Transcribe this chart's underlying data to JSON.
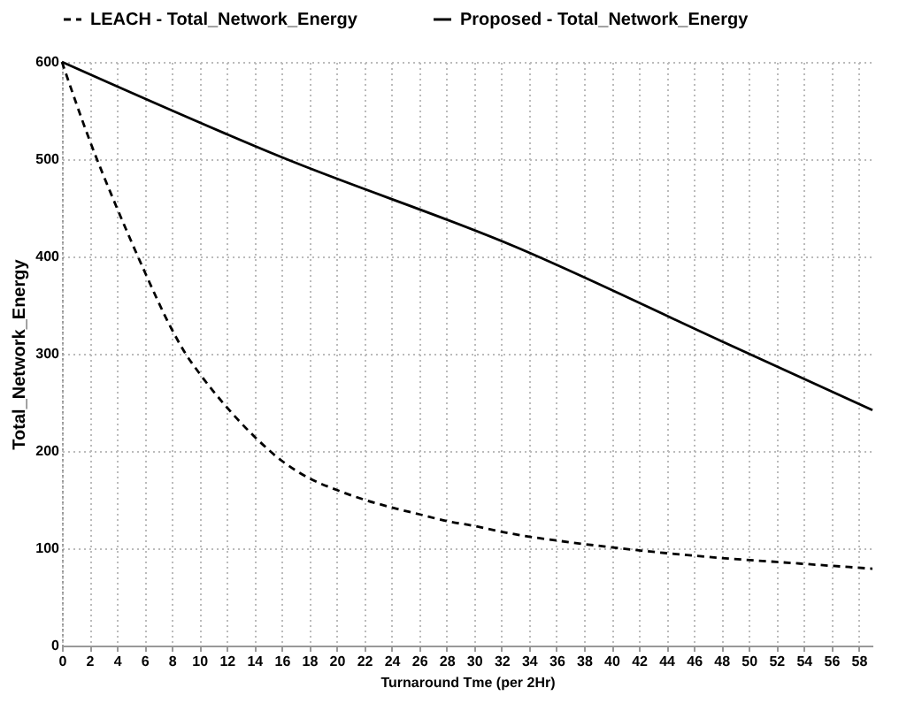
{
  "chart_data": {
    "type": "line",
    "xlabel": "Turnaround Tme (per 2Hr)",
    "ylabel": "Total_Network_Energy",
    "xlim": [
      0,
      59
    ],
    "ylim": [
      0,
      600
    ],
    "xticks": [
      0,
      2,
      4,
      6,
      8,
      10,
      12,
      14,
      16,
      18,
      20,
      22,
      24,
      26,
      28,
      30,
      32,
      34,
      36,
      38,
      40,
      42,
      44,
      46,
      48,
      50,
      52,
      54,
      56,
      58
    ],
    "yticks": [
      0,
      100,
      200,
      300,
      400,
      500,
      600
    ],
    "grid": true,
    "legend": "top",
    "marker": "none",
    "series": [
      {
        "name": "LEACH - Total_Network_Energy",
        "color": "#000000",
        "line_style": "dashed",
        "x": [
          0,
          2,
          4,
          5,
          6,
          8,
          9,
          10,
          12,
          14,
          16,
          18,
          20,
          22,
          24,
          26,
          28,
          30,
          32,
          34,
          36,
          40,
          44,
          48,
          52,
          56,
          59
        ],
        "values": [
          600,
          520,
          450,
          417,
          385,
          325,
          300,
          280,
          245,
          215,
          190,
          172,
          160,
          150,
          142,
          135,
          128,
          123,
          117,
          112,
          108,
          101,
          95,
          90,
          86,
          82,
          79
        ]
      },
      {
        "name": "Proposed - Total_Network_Energy",
        "color": "#000000",
        "line_style": "solid",
        "x": [
          0,
          16,
          33,
          48,
          59
        ],
        "values": [
          600,
          502,
          410,
          313,
          242
        ]
      }
    ]
  }
}
